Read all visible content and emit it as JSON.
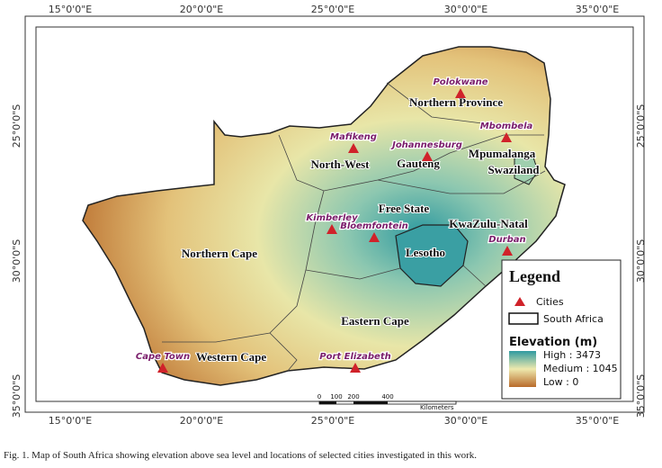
{
  "map": {
    "graticule": {
      "top": [
        "15°0'0\"E",
        "20°0'0\"E",
        "25°0'0\"E",
        "30°0'0\"E",
        "35°0'0\"E"
      ],
      "bottom": [
        "15°0'0\"E",
        "20°0'0\"E",
        "25°0'0\"E",
        "30°0'0\"E",
        "35°0'0\"E"
      ],
      "left": [
        "25°0'0\"S",
        "30°0'0\"S",
        "35°0'0\"S"
      ],
      "right": [
        "25°0'0\"S",
        "30°0'0\"S",
        "35°0'0\"S"
      ]
    },
    "cities": [
      "Polokwane",
      "Mbombela",
      "Mafikeng",
      "Johannesburg",
      "Kimberley",
      "Bloemfontein",
      "Durban",
      "Cape Town",
      "Port Elizabeth"
    ],
    "regions": [
      "Northern Province",
      "Mpumalanga",
      "Swaziland",
      "North-West",
      "Gauteng",
      "Free State",
      "KwaZulu-Natal",
      "Lesotho",
      "Northern Cape",
      "Eastern Cape",
      "Western Cape"
    ],
    "legend": {
      "title": "Legend",
      "cities": "Cities",
      "boundary": "South Africa",
      "elevation_title": "Elevation (m)",
      "high": "High : 3473",
      "medium": "Medium : 1045",
      "low": "Low : 0"
    },
    "scale_bar": {
      "ticks": [
        "0",
        "100",
        "200",
        "400"
      ],
      "unit": "Kilometers"
    }
  },
  "caption": "Fig. 1. Map of South Africa showing elevation above sea level and locations of selected cities investigated in this work."
}
